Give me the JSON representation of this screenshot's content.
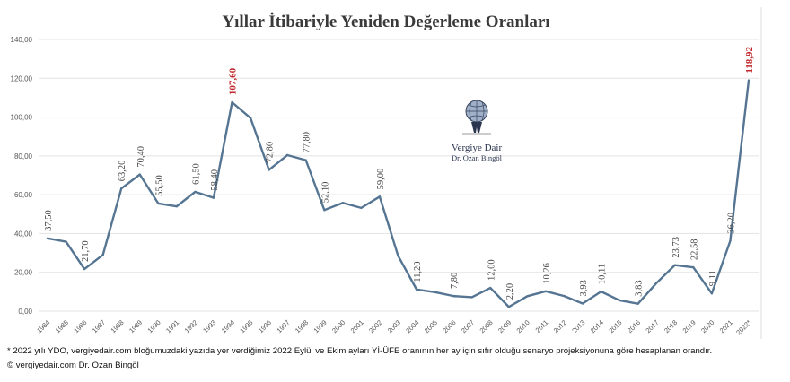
{
  "chart_data": {
    "type": "line",
    "title": "Yıllar İtibariyle Yeniden Değerleme Oranları",
    "ylim": [
      0,
      140
    ],
    "yticks": [
      "0,00",
      "20,00",
      "40,00",
      "60,00",
      "80,00",
      "100,00",
      "120,00",
      "140,00"
    ],
    "grid": true,
    "line_color": "#557592",
    "highlight_color": "#c0262a",
    "categories": [
      "1984",
      "1985",
      "1986",
      "1987",
      "1988",
      "1989",
      "1990",
      "1991",
      "1992",
      "1993",
      "1994",
      "1995",
      "1996",
      "1997",
      "1998",
      "1999",
      "2000",
      "2001",
      "2002",
      "2003",
      "2004",
      "2005",
      "2006",
      "2007",
      "2008",
      "2009",
      "2010",
      "2011",
      "2012",
      "2013",
      "2014",
      "2015",
      "2016",
      "2017",
      "2018",
      "2019",
      "2020",
      "2021",
      "2022*"
    ],
    "values": [
      37.5,
      35.8,
      21.7,
      29.0,
      63.2,
      70.4,
      55.5,
      54.0,
      61.5,
      58.4,
      107.6,
      99.5,
      72.8,
      80.4,
      77.8,
      52.1,
      55.8,
      53.2,
      59.0,
      28.5,
      11.2,
      9.8,
      7.8,
      7.2,
      12.0,
      2.2,
      7.7,
      10.26,
      7.8,
      3.93,
      10.11,
      5.58,
      3.83,
      14.47,
      23.73,
      22.58,
      9.11,
      36.2,
      118.92
    ],
    "data_labels": [
      "37,50",
      null,
      "21,70",
      null,
      "63,20",
      "70,40",
      "55,50",
      null,
      "61,50",
      "58,40",
      "107,60",
      null,
      "72,80",
      null,
      "77,80",
      "52,10",
      null,
      null,
      "59,00",
      null,
      "11,20",
      null,
      "7,80",
      null,
      "12,00",
      "2,20",
      null,
      "10,26",
      null,
      "3,93",
      "10,11",
      null,
      "3,83",
      null,
      "23,73",
      "22,58",
      "9,11",
      "36,20",
      "118,92"
    ],
    "highlighted": [
      "1994",
      "2022*"
    ]
  },
  "logo": {
    "line1": "Vergiye Dair",
    "line2": "Dr. Ozan Bingöl"
  },
  "footnote": "* 2022 yılı YDO, vergiyedair.com bloğumuzdaki yazıda yer verdiğimiz 2022 Eylül ve Ekim ayları Yİ-ÜFE oranının her ay için sıfır olduğu senaryo projeksiyonuna göre hesaplanan orandır.",
  "copyright": "© vergiyedair.com Dr. Ozan Bingöl"
}
